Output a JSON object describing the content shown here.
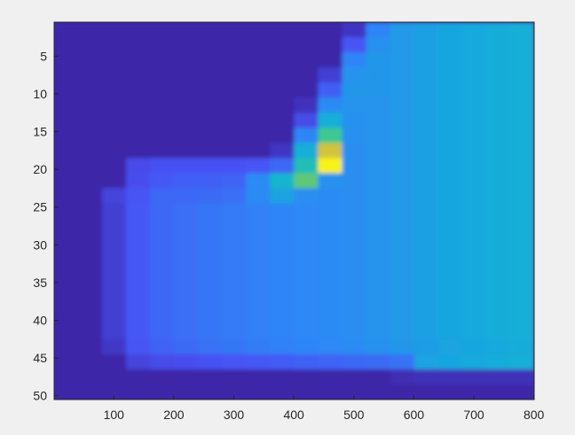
{
  "chart_data": {
    "type": "heatmap",
    "title": "",
    "xlabel": "",
    "ylabel": "",
    "xlim": [
      0.5,
      800.5
    ],
    "ylim": [
      0.5,
      50.5
    ],
    "y_direction": "reversed",
    "colormap": "parula",
    "clim": [
      0,
      1
    ],
    "grid": false,
    "x_ticks": [
      100,
      200,
      300,
      400,
      500,
      600,
      700,
      800
    ],
    "y_ticks": [
      5,
      10,
      15,
      20,
      25,
      30,
      35,
      40,
      45,
      50
    ],
    "x_bin_edges_step": 40,
    "y_bin_edges_step": 2,
    "values_note": "",
    "values": [
      [
        0,
        0,
        0,
        0,
        0,
        0,
        0,
        0,
        0,
        0,
        0,
        0,
        0.05,
        0.28,
        0.35,
        0.37,
        0.39,
        0.4,
        0.41,
        0.42
      ],
      [
        0,
        0,
        0,
        0,
        0,
        0,
        0,
        0,
        0,
        0,
        0,
        0,
        0.15,
        0.32,
        0.35,
        0.37,
        0.39,
        0.4,
        0.41,
        0.42
      ],
      [
        0,
        0,
        0,
        0,
        0,
        0,
        0,
        0,
        0,
        0,
        0,
        0,
        0.28,
        0.34,
        0.35,
        0.37,
        0.39,
        0.4,
        0.41,
        0.42
      ],
      [
        0,
        0,
        0,
        0,
        0,
        0,
        0,
        0,
        0,
        0,
        0,
        0.08,
        0.33,
        0.34,
        0.35,
        0.37,
        0.39,
        0.4,
        0.41,
        0.42
      ],
      [
        0,
        0,
        0,
        0,
        0,
        0,
        0,
        0,
        0,
        0,
        0,
        0.18,
        0.34,
        0.34,
        0.35,
        0.37,
        0.39,
        0.4,
        0.41,
        0.42
      ],
      [
        0,
        0,
        0,
        0,
        0,
        0,
        0,
        0,
        0,
        0,
        0.04,
        0.3,
        0.33,
        0.33,
        0.35,
        0.37,
        0.39,
        0.4,
        0.41,
        0.42
      ],
      [
        0,
        0,
        0,
        0,
        0,
        0,
        0,
        0,
        0,
        0,
        0.12,
        0.42,
        0.32,
        0.33,
        0.35,
        0.37,
        0.39,
        0.4,
        0.41,
        0.42
      ],
      [
        0,
        0,
        0,
        0,
        0,
        0,
        0,
        0,
        0,
        0,
        0.28,
        0.58,
        0.32,
        0.33,
        0.35,
        0.37,
        0.39,
        0.4,
        0.41,
        0.42
      ],
      [
        0,
        0,
        0,
        0,
        0,
        0,
        0,
        0,
        0,
        0.05,
        0.42,
        0.78,
        0.31,
        0.33,
        0.35,
        0.37,
        0.39,
        0.4,
        0.41,
        0.42
      ],
      [
        0,
        0,
        0,
        0.12,
        0.14,
        0.14,
        0.14,
        0.14,
        0.15,
        0.2,
        0.5,
        0.98,
        0.31,
        0.33,
        0.35,
        0.37,
        0.39,
        0.4,
        0.41,
        0.42
      ],
      [
        0,
        0,
        0,
        0.13,
        0.16,
        0.18,
        0.18,
        0.19,
        0.3,
        0.45,
        0.62,
        0.32,
        0.31,
        0.33,
        0.35,
        0.37,
        0.39,
        0.4,
        0.41,
        0.42
      ],
      [
        0,
        0,
        0.1,
        0.15,
        0.2,
        0.2,
        0.21,
        0.22,
        0.3,
        0.38,
        0.31,
        0.3,
        0.31,
        0.33,
        0.35,
        0.37,
        0.39,
        0.4,
        0.41,
        0.42
      ],
      [
        0,
        0,
        0.08,
        0.16,
        0.2,
        0.22,
        0.24,
        0.25,
        0.27,
        0.28,
        0.29,
        0.3,
        0.31,
        0.33,
        0.35,
        0.37,
        0.39,
        0.4,
        0.41,
        0.42
      ],
      [
        0,
        0,
        0.08,
        0.16,
        0.2,
        0.22,
        0.24,
        0.25,
        0.27,
        0.28,
        0.29,
        0.3,
        0.31,
        0.33,
        0.35,
        0.37,
        0.39,
        0.4,
        0.41,
        0.42
      ],
      [
        0,
        0,
        0.08,
        0.16,
        0.2,
        0.22,
        0.24,
        0.25,
        0.27,
        0.28,
        0.29,
        0.3,
        0.31,
        0.33,
        0.35,
        0.37,
        0.39,
        0.4,
        0.41,
        0.42
      ],
      [
        0,
        0,
        0.08,
        0.16,
        0.2,
        0.22,
        0.24,
        0.25,
        0.27,
        0.28,
        0.29,
        0.3,
        0.31,
        0.33,
        0.35,
        0.37,
        0.39,
        0.4,
        0.41,
        0.42
      ],
      [
        0,
        0,
        0.08,
        0.16,
        0.2,
        0.22,
        0.24,
        0.25,
        0.27,
        0.28,
        0.29,
        0.3,
        0.31,
        0.33,
        0.35,
        0.37,
        0.39,
        0.4,
        0.41,
        0.42
      ],
      [
        0,
        0,
        0.08,
        0.16,
        0.2,
        0.22,
        0.24,
        0.25,
        0.27,
        0.28,
        0.29,
        0.3,
        0.31,
        0.33,
        0.35,
        0.37,
        0.39,
        0.4,
        0.41,
        0.42
      ],
      [
        0,
        0,
        0.08,
        0.16,
        0.2,
        0.22,
        0.24,
        0.25,
        0.27,
        0.28,
        0.29,
        0.3,
        0.31,
        0.33,
        0.35,
        0.37,
        0.39,
        0.4,
        0.41,
        0.42
      ],
      [
        0,
        0,
        0.08,
        0.16,
        0.2,
        0.22,
        0.24,
        0.25,
        0.27,
        0.28,
        0.29,
        0.3,
        0.31,
        0.33,
        0.35,
        0.37,
        0.39,
        0.4,
        0.41,
        0.42
      ],
      [
        0,
        0,
        0.08,
        0.16,
        0.2,
        0.22,
        0.24,
        0.25,
        0.27,
        0.28,
        0.29,
        0.3,
        0.31,
        0.33,
        0.35,
        0.37,
        0.39,
        0.4,
        0.41,
        0.42
      ],
      [
        0,
        0,
        0.06,
        0.15,
        0.19,
        0.21,
        0.23,
        0.24,
        0.26,
        0.27,
        0.28,
        0.29,
        0.3,
        0.32,
        0.34,
        0.36,
        0.38,
        0.39,
        0.4,
        0.41
      ],
      [
        0,
        0,
        0,
        0.1,
        0.12,
        0.13,
        0.14,
        0.15,
        0.16,
        0.17,
        0.18,
        0.19,
        0.2,
        0.21,
        0.23,
        0.38,
        0.39,
        0.4,
        0.41,
        0.42
      ],
      [
        0,
        0,
        0,
        0,
        0,
        0,
        0,
        0,
        0,
        0,
        0,
        0,
        0,
        0,
        0.02,
        0.03,
        0.03,
        0.03,
        0.03,
        0.03
      ],
      [
        0,
        0,
        0,
        0,
        0,
        0,
        0,
        0,
        0,
        0,
        0,
        0,
        0,
        0,
        0,
        0,
        0,
        0,
        0,
        0
      ]
    ]
  }
}
